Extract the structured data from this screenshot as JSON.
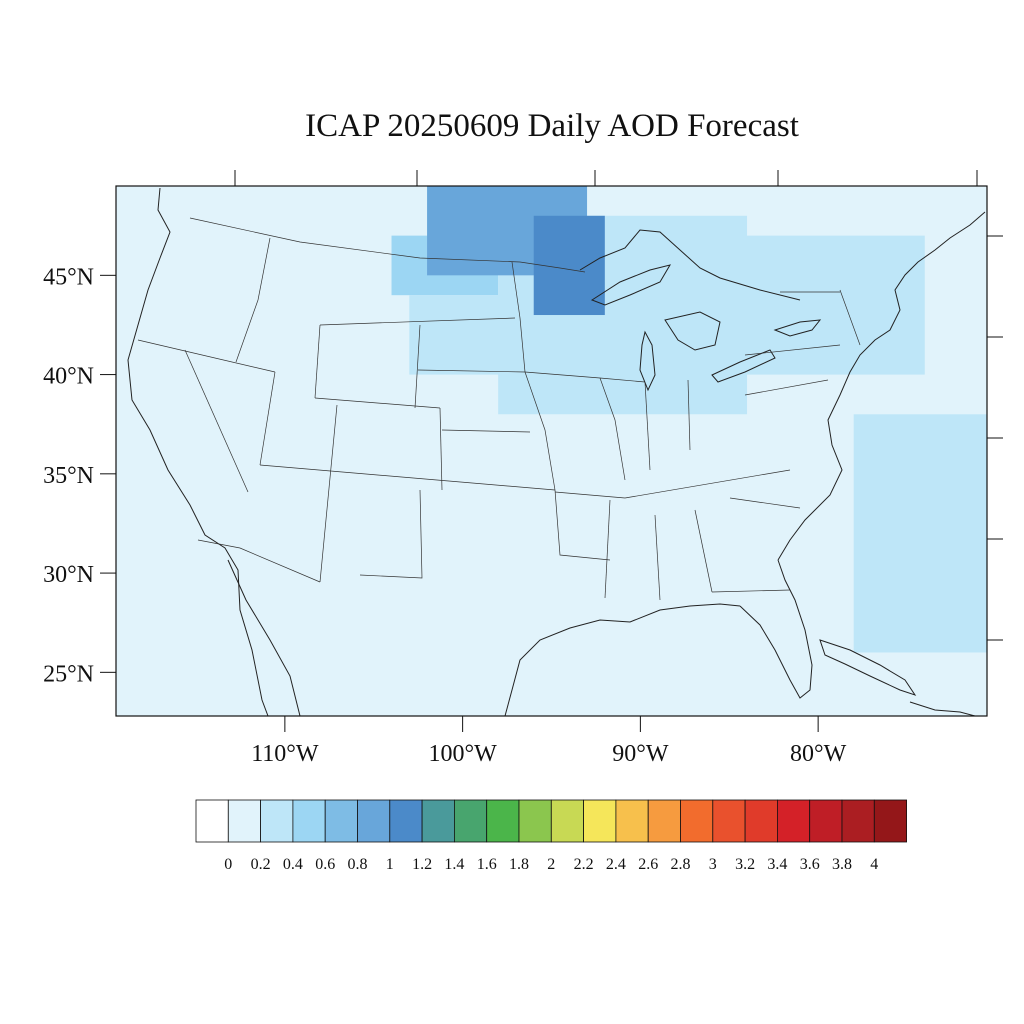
{
  "title": "ICAP 20250609 Daily AOD Forecast",
  "map": {
    "lon_range": [
      -119.5,
      -70.5
    ],
    "lat_range": [
      22.8,
      49.5
    ],
    "lat_ticks": [
      {
        "value": 45,
        "label": "45°N"
      },
      {
        "value": 40,
        "label": "40°N"
      },
      {
        "value": 35,
        "label": "35°N"
      },
      {
        "value": 30,
        "label": "30°N"
      },
      {
        "value": 25,
        "label": "25°N"
      }
    ],
    "lon_ticks": [
      {
        "value": -110,
        "label": "110°W"
      },
      {
        "value": -100,
        "label": "100°W"
      },
      {
        "value": -90,
        "label": "90°W"
      },
      {
        "value": -80,
        "label": "80°W"
      }
    ],
    "background_level": 0.1,
    "aod_regions": [
      {
        "lon": [
          -104,
          -98
        ],
        "lat": [
          44,
          47
        ],
        "aod": 0.5
      },
      {
        "lon": [
          -103,
          -96
        ],
        "lat": [
          40,
          44
        ],
        "aod": 0.3
      },
      {
        "lon": [
          -98,
          -84
        ],
        "lat": [
          38,
          48
        ],
        "aod": 0.3
      },
      {
        "lon": [
          -102,
          -93
        ],
        "lat": [
          45,
          49.5
        ],
        "aod": 0.9
      },
      {
        "lon": [
          -96,
          -92
        ],
        "lat": [
          43,
          48
        ],
        "aod": 1.0
      },
      {
        "lon": [
          -85,
          -74
        ],
        "lat": [
          40,
          47
        ],
        "aod": 0.3
      },
      {
        "lon": [
          -78,
          -70.5
        ],
        "lat": [
          26,
          38
        ],
        "aod": 0.3
      }
    ]
  },
  "colorbar": {
    "labels": [
      "0",
      "0.2",
      "0.4",
      "0.6",
      "0.8",
      "1",
      "1.2",
      "1.4",
      "1.6",
      "1.8",
      "2",
      "2.2",
      "2.4",
      "2.6",
      "2.8",
      "3",
      "3.2",
      "3.4",
      "3.6",
      "3.8",
      "4"
    ],
    "colors": [
      "#ffffff",
      "#e1f3fb",
      "#bee6f8",
      "#9cd6f3",
      "#7ebce5",
      "#68a6da",
      "#4b8ac9",
      "#4a9a9b",
      "#48a56e",
      "#4bb54a",
      "#8bc64e",
      "#c8d954",
      "#f5e65a",
      "#f7c04c",
      "#f69b3f",
      "#f26c2d",
      "#e9512d",
      "#e03b2a",
      "#d42128",
      "#bf1e26",
      "#ab1e22",
      "#941719"
    ]
  }
}
